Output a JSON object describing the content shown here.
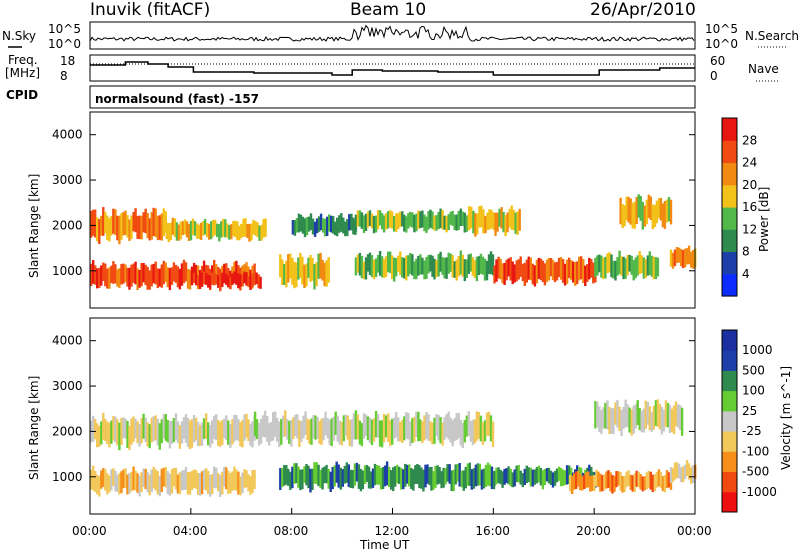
{
  "header": {
    "station": "Inuvik (fitACF)",
    "beam": "Beam 10",
    "date": "26/Apr/2010"
  },
  "status_panels": {
    "nsky_label": "N.Sky",
    "nsearch_label": "N.Search",
    "nsky_ticks": [
      "10^5",
      "10^0"
    ],
    "nsearch_ticks": [
      "10^5",
      "10^0"
    ],
    "freq_label_line1": "Freq.",
    "freq_label_line2": "[MHz]",
    "freq_ticks": [
      "18",
      "8"
    ],
    "nave_label": "Nave",
    "nave_ticks": [
      "60",
      "0"
    ],
    "cpid_label": "CPID",
    "cpid_text": "normalsound (fast) -157"
  },
  "colors": {
    "power_scale": [
      "#0b2bff",
      "#1d3fa8",
      "#2e8a4e",
      "#52b84a",
      "#f2c21a",
      "#f28a12",
      "#f14a12",
      "#e81610"
    ],
    "velocity_scale": [
      "#ee1010",
      "#f14a10",
      "#f7901a",
      "#f2c85a",
      "#c8c8c8",
      "#66cc33",
      "#2e8a4e",
      "#1d3fa8",
      "#1b2fa0"
    ]
  },
  "chart_data": [
    {
      "type": "heatmap",
      "name_label": "Power",
      "ylabel": "Slant Range [km]",
      "xlabel": "Time UT",
      "x_ticks": [
        "00:00",
        "04:00",
        "08:00",
        "12:00",
        "16:00",
        "20:00",
        "00:00"
      ],
      "xlim_hours": [
        0,
        24
      ],
      "y_ticks": [
        1000,
        2000,
        3000,
        4000
      ],
      "ylim_km": [
        180,
        4500
      ],
      "colorbar_label": "Power [dB]",
      "colorbar_ticks": [
        "4",
        "8",
        "12",
        "16",
        "20",
        "24",
        "28"
      ],
      "bands": [
        {
          "start": 0.0,
          "end": 3.0,
          "center": 2000,
          "width": 600,
          "level": 5
        },
        {
          "start": 0.0,
          "end": 6.5,
          "center": 900,
          "width": 500,
          "level": 6
        },
        {
          "start": 3.0,
          "end": 7.0,
          "center": 1900,
          "width": 400,
          "level": 4
        },
        {
          "start": 4.0,
          "end": 6.8,
          "center": 800,
          "width": 300,
          "level": 7
        },
        {
          "start": 7.5,
          "end": 9.5,
          "center": 1000,
          "width": 600,
          "level": 4
        },
        {
          "start": 8.0,
          "end": 10.5,
          "center": 2000,
          "width": 400,
          "level": 2
        },
        {
          "start": 10.5,
          "end": 15.0,
          "center": 2100,
          "width": 400,
          "level": 3
        },
        {
          "start": 10.5,
          "end": 16.0,
          "center": 1100,
          "width": 500,
          "level": 3
        },
        {
          "start": 15.0,
          "end": 17.0,
          "center": 2100,
          "width": 500,
          "level": 4
        },
        {
          "start": 16.0,
          "end": 20.0,
          "center": 1000,
          "width": 500,
          "level": 6
        },
        {
          "start": 20.0,
          "end": 22.5,
          "center": 1100,
          "width": 500,
          "level": 3
        },
        {
          "start": 21.0,
          "end": 23.0,
          "center": 2300,
          "width": 600,
          "level": 4
        },
        {
          "start": 23.0,
          "end": 24.0,
          "center": 1300,
          "width": 400,
          "level": 5
        }
      ]
    },
    {
      "type": "heatmap",
      "name_label": "Velocity",
      "ylabel": "Slant Range [km]",
      "xlabel": "Time UT",
      "x_ticks": [
        "00:00",
        "04:00",
        "08:00",
        "12:00",
        "16:00",
        "20:00",
        "00:00"
      ],
      "xlim_hours": [
        0,
        24
      ],
      "y_ticks": [
        1000,
        2000,
        3000,
        4000
      ],
      "ylim_km": [
        180,
        4500
      ],
      "colorbar_label": "Velocity [m s^-1]",
      "colorbar_ticks": [
        "-1000",
        "-500",
        "-100",
        "-25",
        "25",
        "100",
        "500",
        "1000"
      ],
      "bands": [
        {
          "start": 0.0,
          "end": 6.5,
          "center": 2000,
          "width": 600,
          "level": 4
        },
        {
          "start": 0.0,
          "end": 6.5,
          "center": 900,
          "width": 500,
          "level": 3
        },
        {
          "start": 6.5,
          "end": 16.0,
          "center": 2050,
          "width": 600,
          "level": 4
        },
        {
          "start": 7.5,
          "end": 16.0,
          "center": 1000,
          "width": 500,
          "level": 6
        },
        {
          "start": 16.0,
          "end": 20.0,
          "center": 1000,
          "width": 400,
          "level": 6
        },
        {
          "start": 19.0,
          "end": 23.0,
          "center": 900,
          "width": 400,
          "level": 2
        },
        {
          "start": 20.0,
          "end": 23.5,
          "center": 2300,
          "width": 600,
          "level": 4
        },
        {
          "start": 23.0,
          "end": 24.0,
          "center": 1100,
          "width": 400,
          "level": 3
        }
      ]
    }
  ]
}
